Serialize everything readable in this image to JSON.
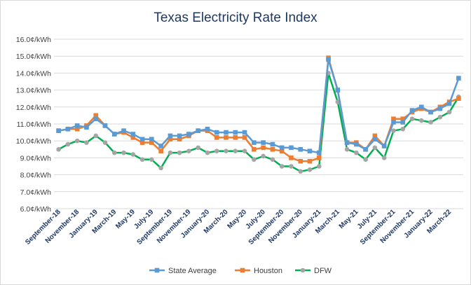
{
  "chart_data": {
    "type": "line",
    "title": "Texas Electricity Rate Index",
    "xlabel": "",
    "ylabel": "",
    "ylim": [
      6,
      16
    ],
    "y_ticks": [
      "6.0¢/kWh",
      "7.0¢/kWh",
      "8.0¢/kWh",
      "9.0¢/kWh",
      "10.0¢/kWh",
      "11.0¢/kWh",
      "12.0¢/kWh",
      "13.0¢/kWh",
      "14.0¢/kWh",
      "15.0¢/kWh",
      "16.0¢/kWh"
    ],
    "categories": [
      "Sep-18",
      "Oct-18",
      "Nov-18",
      "Dec-18",
      "Jan-19",
      "Feb-19",
      "Mar-19",
      "Apr-19",
      "May-19",
      "Jun-19",
      "Jul-19",
      "Aug-19",
      "Sep-19",
      "Oct-19",
      "Nov-19",
      "Dec-19",
      "Jan-20",
      "Feb-20",
      "Mar-20",
      "Apr-20",
      "May-20",
      "Jun-20",
      "Jul-20",
      "Aug-20",
      "Sep-20",
      "Oct-20",
      "Nov-20",
      "Dec-20",
      "Jan-21",
      "Feb-21",
      "Mar-21",
      "Apr-21",
      "May-21",
      "Jun-21",
      "Jul-21",
      "Aug-21",
      "Sep-21",
      "Oct-21",
      "Nov-21",
      "Dec-21",
      "Jan-22",
      "Feb-22",
      "Mar-22",
      "Apr-22"
    ],
    "x_tick_labels": [
      "September-18",
      "November-18",
      "January-19",
      "March-19",
      "May-19",
      "July-19",
      "September-19",
      "November-19",
      "January-20",
      "March-20",
      "May-20",
      "July-20",
      "September-20",
      "November-20",
      "January-21",
      "March-21",
      "May-21",
      "July-21",
      "September-21",
      "November-21",
      "January-22",
      "March-22"
    ],
    "series": [
      {
        "name": "State Average",
        "color": "#5b9bd5",
        "marker": "square",
        "values": [
          10.6,
          10.7,
          10.9,
          10.8,
          11.3,
          10.9,
          10.4,
          10.6,
          10.4,
          10.1,
          10.1,
          9.7,
          10.3,
          10.3,
          10.4,
          10.6,
          10.7,
          10.5,
          10.5,
          10.5,
          10.5,
          9.9,
          9.9,
          9.8,
          9.6,
          9.6,
          9.5,
          9.4,
          9.3,
          14.8,
          13.0,
          9.9,
          9.8,
          9.5,
          10.1,
          9.7,
          11.1,
          11.1,
          11.8,
          12.0,
          11.7,
          11.9,
          12.2,
          13.7
        ]
      },
      {
        "name": "Houston",
        "color": "#ed7d31",
        "marker": "square",
        "values": [
          10.6,
          10.7,
          10.7,
          10.9,
          11.5,
          10.9,
          10.4,
          10.5,
          10.2,
          9.9,
          9.9,
          9.4,
          10.1,
          10.1,
          10.3,
          10.6,
          10.6,
          10.2,
          10.2,
          10.2,
          10.2,
          9.5,
          9.6,
          9.5,
          9.4,
          9.0,
          8.8,
          8.8,
          9.0,
          14.9,
          13.0,
          9.9,
          9.9,
          9.5,
          10.3,
          9.7,
          11.3,
          11.3,
          11.7,
          11.9,
          11.7,
          12.0,
          12.3,
          12.5
        ]
      },
      {
        "name": "DFW",
        "color": "#00b050",
        "marker": "circle",
        "marker_color": "#a5a5a5",
        "values": [
          9.5,
          9.8,
          10.0,
          9.9,
          10.3,
          9.9,
          9.3,
          9.3,
          9.2,
          8.9,
          8.9,
          8.4,
          9.3,
          9.3,
          9.4,
          9.6,
          9.3,
          9.4,
          9.4,
          9.4,
          9.4,
          8.9,
          9.1,
          8.9,
          8.5,
          8.5,
          8.2,
          8.3,
          8.5,
          14.0,
          12.3,
          9.5,
          9.3,
          8.9,
          9.6,
          9.0,
          10.6,
          10.7,
          11.3,
          11.2,
          11.1,
          11.4,
          11.7,
          12.6
        ]
      }
    ],
    "legend_position": "bottom"
  }
}
